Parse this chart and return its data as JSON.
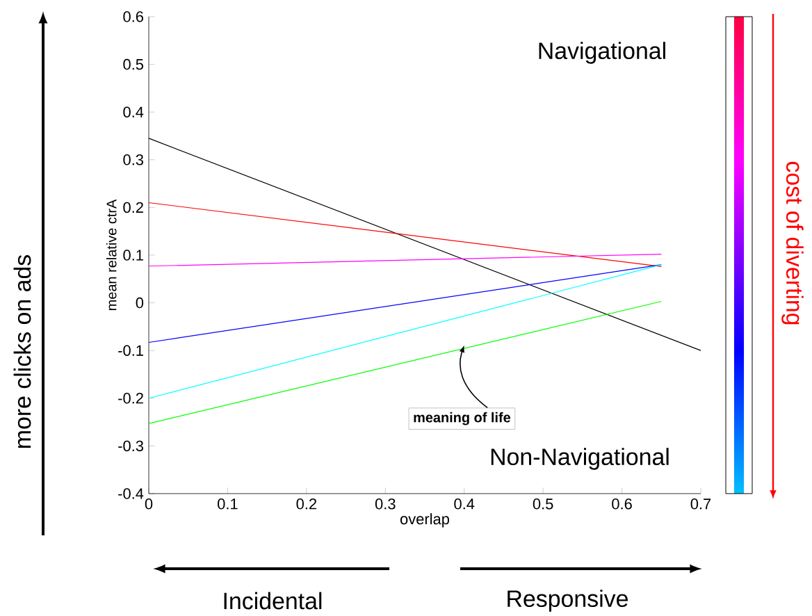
{
  "chart_data": {
    "type": "line",
    "xlabel": "overlap",
    "ylabel": "mean relative ctrA",
    "clabel": "cost of diverting",
    "x": [
      0,
      0.65
    ],
    "series": [
      {
        "color": "#000000",
        "values": [
          0.345,
          -0.1
        ],
        "x": [
          0,
          0.7
        ]
      },
      {
        "color": "#ff0000",
        "values": [
          0.21,
          0.076
        ]
      },
      {
        "color": "#ff00ff",
        "values": [
          0.077,
          0.102
        ]
      },
      {
        "color": "#0000ff",
        "values": [
          -0.083,
          0.08
        ]
      },
      {
        "color": "#00ffff",
        "values": [
          -0.2,
          0.08
        ]
      },
      {
        "color": "#00ff00",
        "values": [
          -0.253,
          0.003
        ]
      }
    ],
    "xlim": [
      0,
      0.7
    ],
    "ylim": [
      -0.4,
      0.6
    ],
    "xticks": [
      0,
      0.1,
      0.2,
      0.3,
      0.4,
      0.5,
      0.6,
      0.7
    ],
    "yticks": [
      -0.4,
      -0.3,
      -0.2,
      -0.1,
      0,
      0.1,
      0.2,
      0.3,
      0.4,
      0.5,
      0.6
    ],
    "annotations": [
      "Navigational",
      "Non-Navigational",
      {
        "text": "meaning of life",
        "x": 0.4,
        "y": -0.08
      },
      "more clicks on ads",
      "Incidental",
      "Responsive"
    ],
    "grid": false
  }
}
